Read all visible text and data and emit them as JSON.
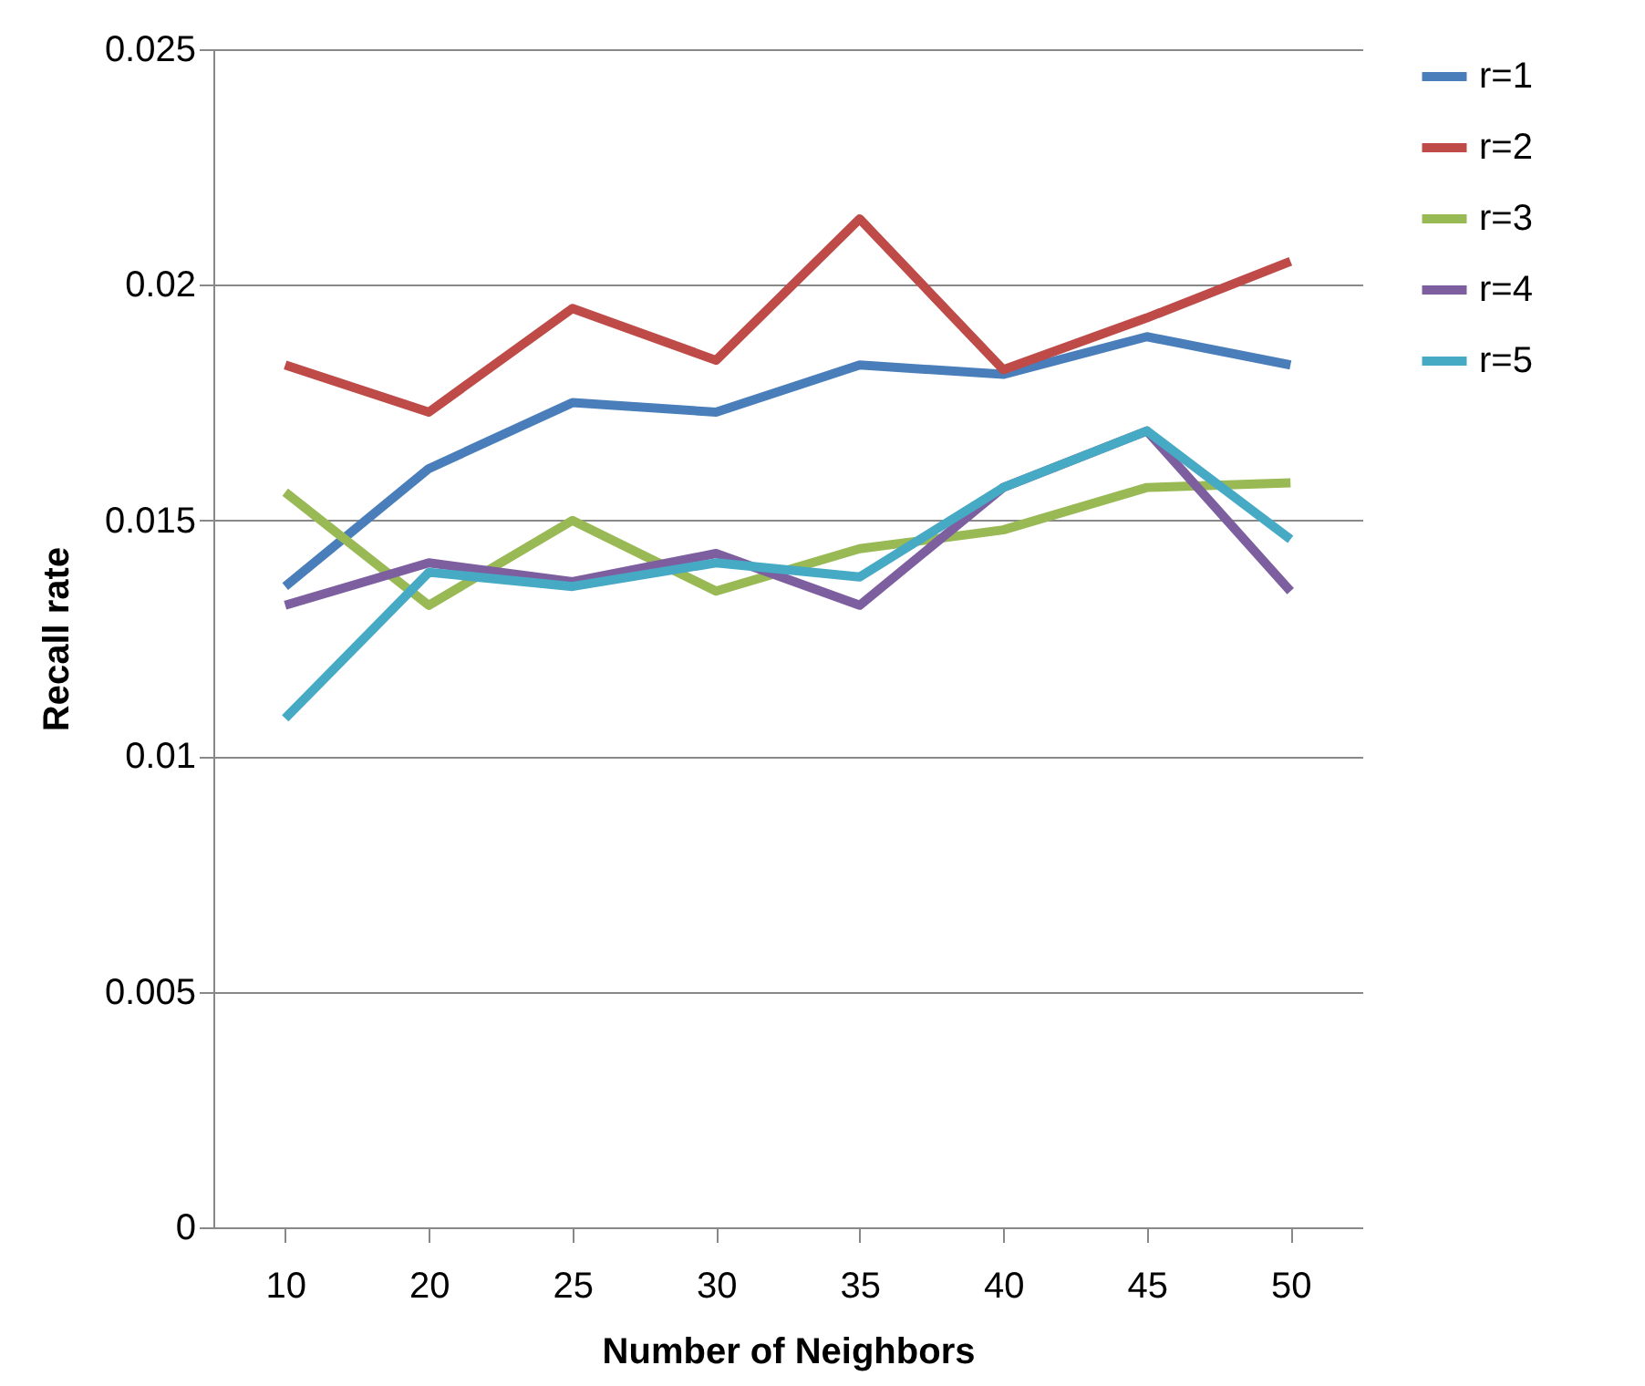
{
  "chart_data": {
    "type": "line",
    "xlabel": "Number of Neighbors",
    "ylabel": "Recall rate",
    "categories": [
      "10",
      "20",
      "25",
      "30",
      "35",
      "40",
      "45",
      "50"
    ],
    "series": [
      {
        "name": "r=1",
        "color": "#4a7ebb",
        "values": [
          0.0136,
          0.0161,
          0.0175,
          0.0173,
          0.0183,
          0.0181,
          0.0189,
          0.0183
        ]
      },
      {
        "name": "r=2",
        "color": "#be4b48",
        "values": [
          0.0183,
          0.0173,
          0.0195,
          0.0184,
          0.0214,
          0.0182,
          0.0193,
          0.0205
        ]
      },
      {
        "name": "r=3",
        "color": "#98b954",
        "values": [
          0.0156,
          0.0132,
          0.015,
          0.0135,
          0.0144,
          0.0148,
          0.0157,
          0.0158
        ]
      },
      {
        "name": "r=4",
        "color": "#7d5fa0",
        "values": [
          0.0132,
          0.0141,
          0.0137,
          0.0143,
          0.0132,
          0.0157,
          0.0169,
          0.0135
        ]
      },
      {
        "name": "r=5",
        "color": "#46aac5",
        "values": [
          0.0108,
          0.0139,
          0.0136,
          0.0141,
          0.0138,
          0.0157,
          0.0169,
          0.0146
        ]
      }
    ],
    "ylim": [
      0,
      0.025
    ],
    "yticks": [
      0,
      0.005,
      0.01,
      0.015,
      0.02,
      0.025
    ],
    "grid": "y",
    "legend": "right",
    "marker": "none",
    "line_style": "solid"
  }
}
